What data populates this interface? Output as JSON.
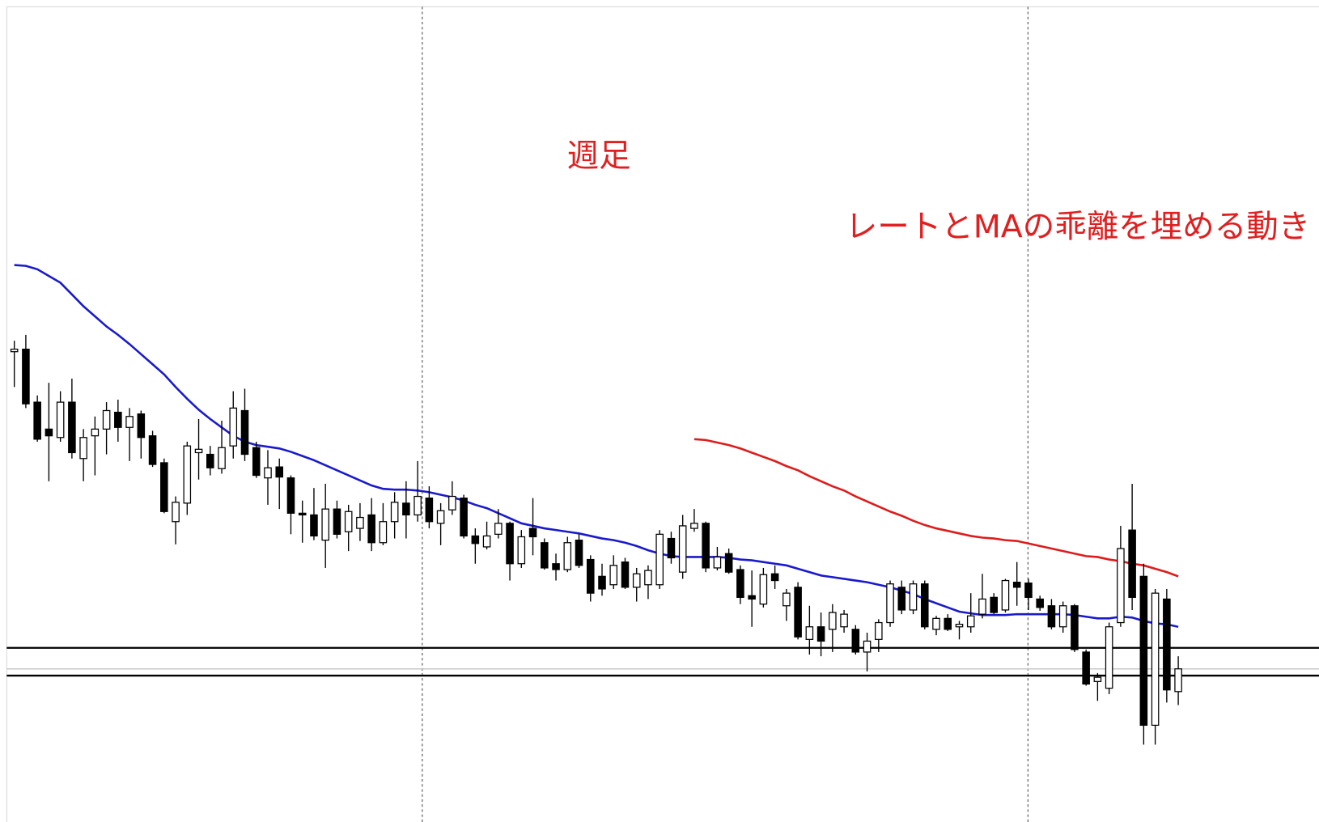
{
  "chart_data": {
    "type": "candlestick",
    "annotations": [
      {
        "text": "週足",
        "color": "#e02020"
      },
      {
        "text": "レートとMAの乖離を埋める動き",
        "color": "#e02020"
      }
    ],
    "ylim": [
      24,
      992
    ],
    "up_color": "#ffffff",
    "down_color": "#000000",
    "open": [
      582,
      585,
      522,
      490,
      480,
      522,
      455,
      482,
      490,
      510,
      492,
      508,
      482,
      450,
      380,
      402,
      462,
      460,
      443,
      470,
      512,
      468,
      432,
      445,
      432,
      390,
      388,
      358,
      395,
      368,
      372,
      388,
      355,
      380,
      402,
      388,
      408,
      378,
      394,
      408,
      363,
      350,
      365,
      378,
      330,
      372,
      355,
      330,
      323,
      358,
      335,
      315,
      305,
      332,
      302,
      305,
      305,
      360,
      320,
      372,
      378,
      325,
      342,
      323,
      292,
      282,
      318,
      280,
      302,
      240,
      255,
      252,
      255,
      252,
      225,
      240,
      260,
      302,
      275,
      306,
      252,
      265,
      255,
      255,
      270,
      290,
      275,
      308,
      307,
      288,
      280,
      255,
      280,
      225,
      190,
      182,
      260,
      370,
      315,
      138,
      288,
      178
    ],
    "high": [
      595,
      602,
      530,
      545,
      535,
      550,
      490,
      505,
      522,
      525,
      515,
      512,
      488,
      455,
      410,
      475,
      502,
      470,
      500,
      535,
      538,
      475,
      465,
      455,
      435,
      405,
      420,
      425,
      405,
      400,
      402,
      408,
      402,
      415,
      428,
      452,
      422,
      402,
      428,
      412,
      372,
      380,
      395,
      380,
      370,
      408,
      360,
      342,
      362,
      365,
      340,
      330,
      340,
      337,
      325,
      328,
      370,
      368,
      388,
      395,
      380,
      350,
      348,
      328,
      322,
      325,
      328,
      300,
      308,
      280,
      272,
      282,
      275,
      257,
      248,
      264,
      310,
      310,
      310,
      310,
      268,
      270,
      262,
      295,
      318,
      295,
      312,
      332,
      312,
      292,
      288,
      285,
      282,
      228,
      200,
      260,
      375,
      425,
      330,
      300,
      300,
      220
    ],
    "low": [
      540,
      515,
      475,
      428,
      475,
      455,
      428,
      435,
      460,
      475,
      452,
      455,
      445,
      390,
      353,
      388,
      430,
      435,
      437,
      455,
      452,
      432,
      400,
      395,
      365,
      355,
      358,
      325,
      360,
      345,
      357,
      345,
      352,
      360,
      360,
      380,
      372,
      352,
      388,
      360,
      330,
      347,
      360,
      310,
      325,
      340,
      323,
      310,
      320,
      325,
      285,
      292,
      300,
      300,
      285,
      288,
      300,
      330,
      312,
      368,
      320,
      322,
      318,
      282,
      255,
      278,
      300,
      262,
      240,
      222,
      220,
      225,
      248,
      222,
      202,
      225,
      255,
      270,
      270,
      252,
      245,
      250,
      240,
      248,
      265,
      270,
      272,
      280,
      275,
      274,
      252,
      248,
      225,
      185,
      167,
      175,
      255,
      275,
      115,
      115,
      165,
      162
    ],
    "close": [
      585,
      520,
      478,
      482,
      522,
      462,
      480,
      490,
      512,
      492,
      505,
      480,
      448,
      392,
      403,
      470,
      466,
      444,
      468,
      515,
      460,
      435,
      444,
      433,
      390,
      388,
      363,
      395,
      365,
      392,
      385,
      355,
      380,
      403,
      388,
      410,
      380,
      393,
      410,
      363,
      354,
      363,
      378,
      330,
      362,
      362,
      325,
      323,
      355,
      328,
      295,
      300,
      328,
      302,
      318,
      322,
      365,
      337,
      375,
      378,
      325,
      338,
      320,
      290,
      288,
      317,
      310,
      295,
      243,
      255,
      238,
      272,
      270,
      225,
      238,
      260,
      306,
      275,
      306,
      255,
      265,
      252,
      258,
      268,
      288,
      272,
      310,
      302,
      290,
      278,
      255,
      280,
      228,
      187,
      195,
      255,
      348,
      290,
      138,
      295,
      180,
      205
    ],
    "lines": [
      {
        "color": "#1a1acc",
        "values": [
          685,
          684,
          680,
          672,
          664,
          650,
          636,
          624,
          612,
          602,
          591,
          579,
          567,
          555,
          540,
          526,
          513,
          502,
          492,
          482,
          475,
          471,
          469,
          467,
          463,
          458,
          453,
          447,
          441,
          435,
          429,
          423,
          419,
          418,
          418,
          417,
          415,
          412,
          409,
          405,
          400,
          396,
          390,
          384,
          378,
          375,
          372,
          370,
          368,
          366,
          363,
          360,
          358,
          355,
          351,
          346,
          342,
          339,
          338,
          338,
          338,
          338,
          337,
          335,
          334,
          332,
          330,
          328,
          324,
          320,
          316,
          314,
          312,
          310,
          308,
          305,
          302,
          298,
          294,
          288,
          283,
          278,
          273,
          271,
          269,
          269,
          269,
          270,
          270,
          270,
          270,
          270,
          269,
          267,
          265,
          265,
          267,
          266,
          262,
          259,
          258,
          255
        ]
      },
      {
        "color": "#dd1c1c",
        "values": [
          null,
          null,
          null,
          null,
          null,
          null,
          null,
          null,
          null,
          null,
          null,
          null,
          null,
          null,
          null,
          null,
          null,
          null,
          null,
          null,
          null,
          null,
          null,
          null,
          null,
          null,
          null,
          null,
          null,
          null,
          null,
          null,
          null,
          null,
          null,
          null,
          null,
          null,
          null,
          null,
          null,
          null,
          null,
          null,
          null,
          null,
          null,
          null,
          null,
          null,
          null,
          null,
          null,
          null,
          null,
          null,
          null,
          null,
          null,
          478,
          477,
          474,
          471,
          467,
          462,
          457,
          452,
          446,
          441,
          434,
          428,
          422,
          417,
          410,
          404,
          398,
          392,
          387,
          381,
          376,
          372,
          369,
          366,
          363,
          361,
          360,
          358,
          357,
          354,
          351,
          348,
          345,
          342,
          339,
          338,
          335,
          333,
          330,
          328,
          324,
          320,
          315
        ]
      }
    ],
    "hlines": [
      {
        "value": 230,
        "color": "#000000"
      },
      {
        "value": 205,
        "color": "#c8c8c8"
      },
      {
        "value": 197,
        "color": "#000000"
      }
    ]
  }
}
